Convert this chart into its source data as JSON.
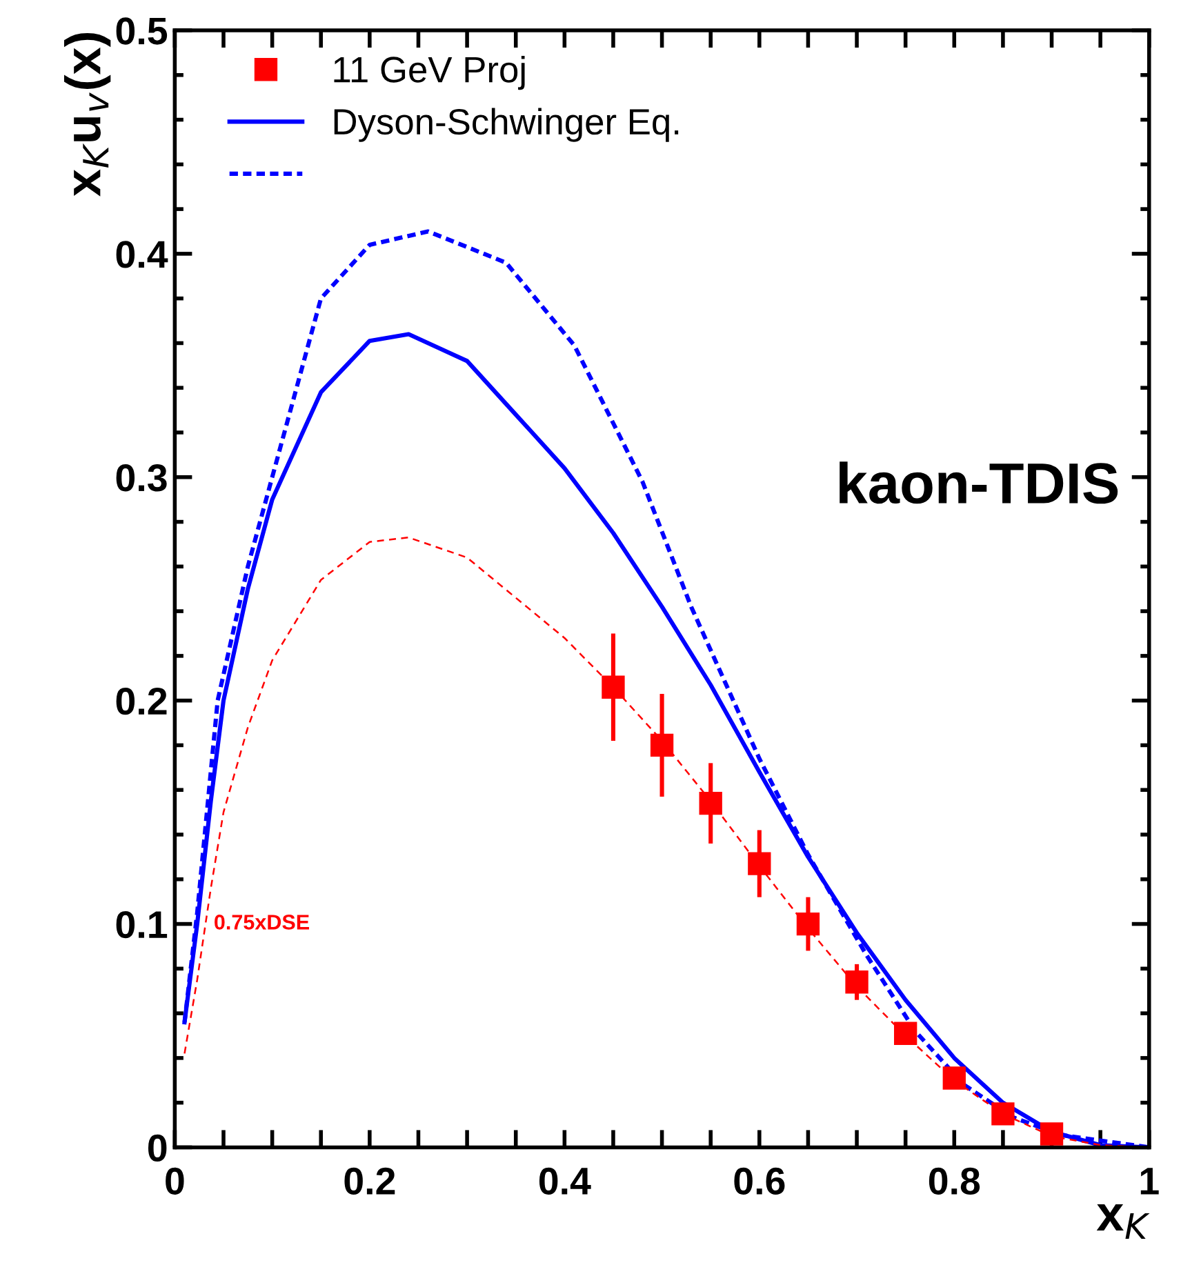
{
  "chart_data": {
    "type": "line",
    "xlabel": "x$_{K}$",
    "ylabel": "x$_{K}$u$_{v}$(x)",
    "xlim": [
      0,
      1
    ],
    "ylim": [
      0,
      0.5
    ],
    "xticks": [
      0,
      {
        "value": 0.05,
        "label": null
      },
      {
        "value": 0.1,
        "label": null
      },
      {
        "value": 0.15,
        "label": null
      },
      0.2,
      {
        "value": 0.25,
        "label": null
      },
      {
        "value": 0.3,
        "label": null
      },
      {
        "value": 0.35,
        "label": null
      },
      0.4,
      {
        "value": 0.45,
        "label": null
      },
      {
        "value": 0.5,
        "label": null
      },
      {
        "value": 0.55,
        "label": null
      },
      0.6,
      {
        "value": 0.65,
        "label": null
      },
      {
        "value": 0.7,
        "label": null
      },
      {
        "value": 0.75,
        "label": null
      },
      0.8,
      {
        "value": 0.85,
        "label": null
      },
      {
        "value": 0.9,
        "label": null
      },
      {
        "value": 0.95,
        "label": null
      },
      1
    ],
    "yticks": [
      0,
      {
        "value": 0.02,
        "label": null
      },
      {
        "value": 0.04,
        "label": null
      },
      {
        "value": 0.06,
        "label": null
      },
      {
        "value": 0.08,
        "label": null
      },
      0.1,
      {
        "value": 0.12,
        "label": null
      },
      {
        "value": 0.14,
        "label": null
      },
      {
        "value": 0.16,
        "label": null
      },
      {
        "value": 0.18,
        "label": null
      },
      0.2,
      {
        "value": 0.22,
        "label": null
      },
      {
        "value": 0.24,
        "label": null
      },
      {
        "value": 0.26,
        "label": null
      },
      {
        "value": 0.28,
        "label": null
      },
      0.3,
      {
        "value": 0.32,
        "label": null
      },
      {
        "value": 0.34,
        "label": null
      },
      {
        "value": 0.36,
        "label": null
      },
      {
        "value": 0.38,
        "label": null
      },
      0.4,
      {
        "value": 0.42,
        "label": null
      },
      {
        "value": 0.44,
        "label": null
      },
      {
        "value": 0.46,
        "label": null
      },
      {
        "value": 0.48,
        "label": null
      },
      0.5
    ],
    "grid": false,
    "legend": "top left",
    "annotations": [
      "kaon-TDIS",
      "0.75xDSE"
    ],
    "series": [
      {
        "name": "11 GeV Proj",
        "type": "scatter",
        "marker": "square",
        "color": "#ff0000",
        "x": [
          0.45,
          0.5,
          0.55,
          0.6,
          0.65,
          0.7,
          0.75,
          0.8,
          0.85,
          0.9
        ],
        "values": [
          0.206,
          0.18,
          0.154,
          0.127,
          0.1,
          0.074,
          0.051,
          0.031,
          0.015,
          0.006
        ],
        "errors": [
          0.024,
          0.023,
          0.018,
          0.015,
          0.012,
          0.008,
          0.004,
          0.003,
          null,
          null
        ]
      },
      {
        "name": "Dyson-Schwinger Eq.",
        "type": "line",
        "line_style": "solid",
        "color": "#0000ff",
        "x": [
          0.01,
          0.023,
          0.037,
          0.05,
          0.075,
          0.1,
          0.15,
          0.2,
          0.24,
          0.3,
          0.35,
          0.4,
          0.45,
          0.5,
          0.55,
          0.6,
          0.65,
          0.7,
          0.75,
          0.8,
          0.85,
          0.9,
          0.95,
          1.0
        ],
        "values": [
          0.056,
          0.1,
          0.155,
          0.2,
          0.25,
          0.29,
          0.338,
          0.361,
          0.364,
          0.352,
          0.328,
          0.304,
          0.275,
          0.242,
          0.207,
          0.168,
          0.13,
          0.096,
          0.066,
          0.04,
          0.02,
          0.007,
          0.001,
          0
        ]
      },
      {
        "type": "line",
        "line_style": "dashed",
        "color": "#0000ff",
        "x": [
          0.01,
          0.023,
          0.044,
          0.075,
          0.1,
          0.15,
          0.2,
          0.26,
          0.34,
          0.41,
          0.48,
          0.53,
          0.6,
          0.65,
          0.71,
          0.76,
          0.81,
          0.86,
          0.91,
          1.0
        ],
        "values": [
          0.056,
          0.105,
          0.2,
          0.26,
          0.3,
          0.38,
          0.404,
          0.41,
          0.396,
          0.359,
          0.298,
          0.242,
          0.174,
          0.131,
          0.086,
          0.052,
          0.028,
          0.0135,
          0.0055,
          0
        ]
      },
      {
        "type": "line",
        "line_style": "dashed",
        "color": "#ff0000",
        "x": [
          0.01,
          0.023,
          0.037,
          0.05,
          0.075,
          0.1,
          0.15,
          0.2,
          0.24,
          0.3,
          0.35,
          0.4,
          0.45,
          0.5,
          0.55,
          0.6,
          0.65,
          0.7,
          0.75,
          0.8,
          0.85,
          0.9,
          0.95,
          1.0
        ],
        "values": [
          0.042,
          0.075,
          0.116,
          0.15,
          0.188,
          0.218,
          0.254,
          0.271,
          0.273,
          0.264,
          0.246,
          0.228,
          0.206,
          0.182,
          0.155,
          0.126,
          0.098,
          0.072,
          0.05,
          0.03,
          0.015,
          0.005,
          0.001,
          0
        ]
      }
    ]
  }
}
